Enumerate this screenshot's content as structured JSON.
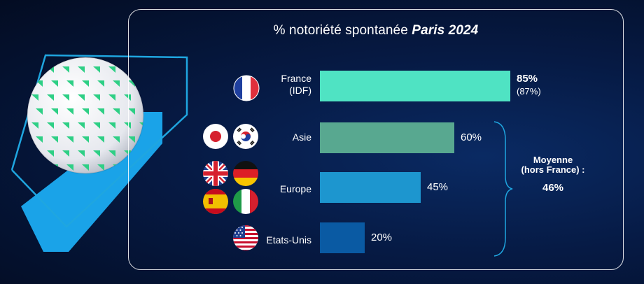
{
  "title": {
    "prefix": "% notoriété spontanée",
    "emphasis": "Paris 2024"
  },
  "chart_data": {
    "type": "bar",
    "orientation": "horizontal",
    "title": "% notoriété spontanée Paris 2024",
    "unit": "%",
    "xlim": [
      0,
      100
    ],
    "categories": [
      "France (IDF)",
      "Asie",
      "Europe",
      "Etats-Unis"
    ],
    "values": [
      85,
      60,
      45,
      20
    ],
    "value_labels": [
      "85%",
      "60%",
      "45%",
      "20%"
    ],
    "secondary_labels": [
      "(87%)",
      "",
      "",
      ""
    ],
    "colors": [
      "#4fe3c3",
      "#58a890",
      "#1d96cf",
      "#0a5aa3"
    ],
    "grid": false
  },
  "categories": {
    "france_line1": "France",
    "france_line2": "(IDF)",
    "asie": "Asie",
    "europe": "Europe",
    "usa": "Etats-Unis"
  },
  "values": {
    "france_main": "85%",
    "france_sub": "(87%)",
    "asie": "60%",
    "europe": "45%",
    "usa": "20%"
  },
  "average": {
    "label_line1": "Moyenne",
    "label_line2": "(hors France) :",
    "value": "46%"
  },
  "flags": [
    "france-flag-icon",
    "japan-flag-icon",
    "south-korea-flag-icon",
    "uk-flag-icon",
    "germany-flag-icon",
    "spain-flag-icon",
    "italy-flag-icon",
    "usa-flag-icon"
  ],
  "colors": {
    "background": "#061a44",
    "panel_border": "#ffffff",
    "accent_green": "#2ecf85",
    "accent_blue": "#1fa6e0"
  }
}
